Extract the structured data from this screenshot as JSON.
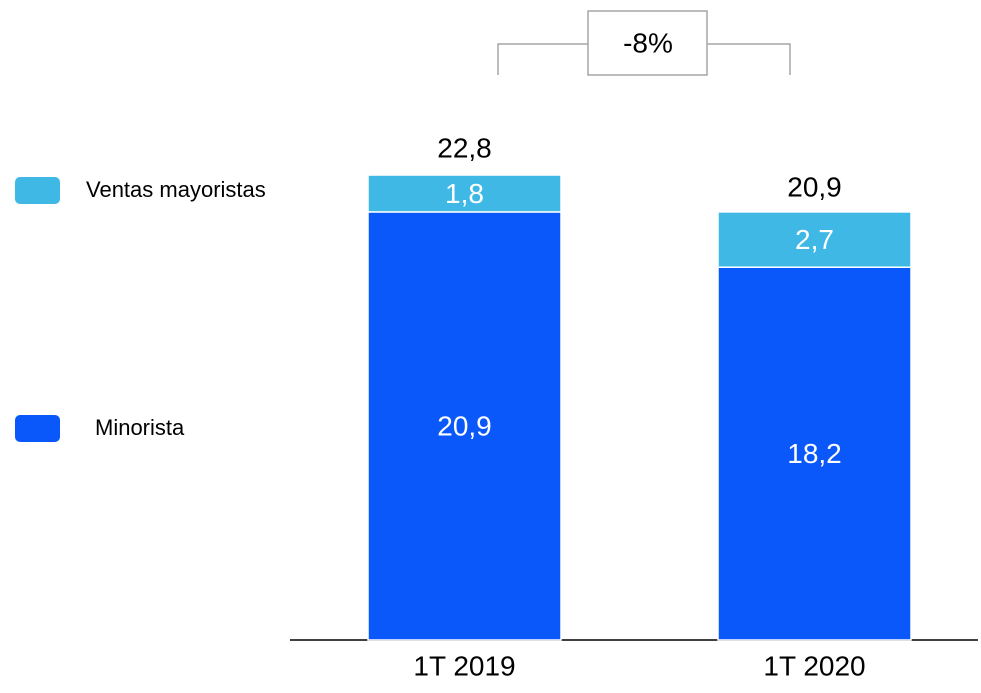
{
  "chart_data": {
    "type": "bar",
    "stacked": true,
    "categories": [
      "1T 2019",
      "1T 2020"
    ],
    "series": [
      {
        "name": "Minorista",
        "color": "#0a57fa",
        "values": [
          20.9,
          18.2
        ],
        "value_labels": [
          "20,9",
          "18,2"
        ]
      },
      {
        "name": "Ventas mayoristas",
        "color": "#3fb8e6",
        "values": [
          1.8,
          2.7
        ],
        "value_labels": [
          "1,8",
          "2,7"
        ]
      }
    ],
    "totals": [
      22.8,
      20.9
    ],
    "total_labels": [
      "22,8",
      "20,9"
    ],
    "annotation": "-8%"
  }
}
